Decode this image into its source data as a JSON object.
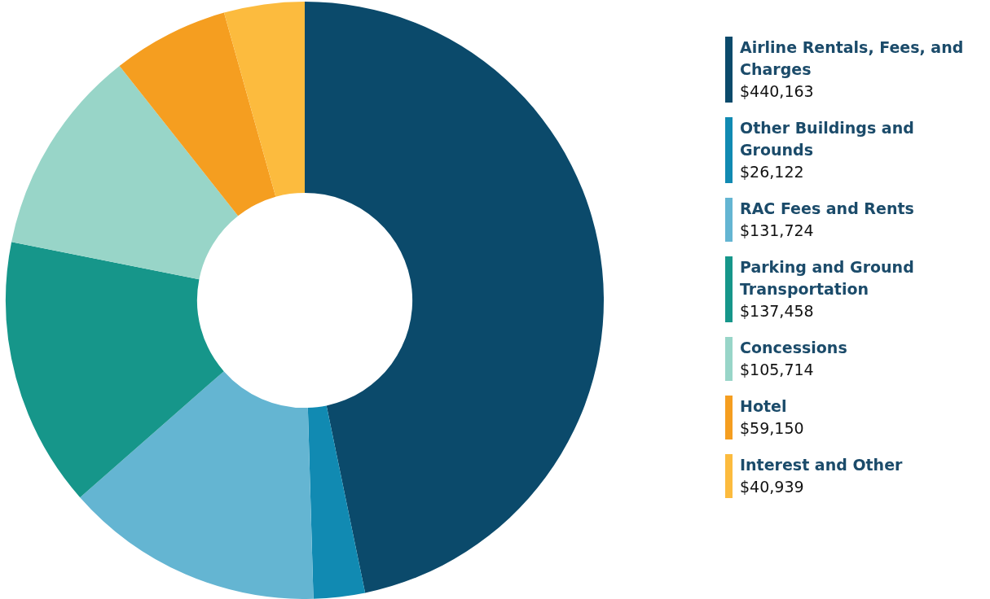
{
  "chart_data": {
    "type": "donut",
    "categories": [
      "Airline Rentals, Fees, and Charges",
      "Other Buildings and Grounds",
      "RAC Fees and Rents",
      "Parking and Ground Transportation",
      "Concessions",
      "Hotel",
      "Interest and Other"
    ],
    "values": [
      440163,
      26122,
      131724,
      137458,
      105714,
      59150,
      40939
    ],
    "value_labels": [
      "$440,163",
      "$26,122",
      "$131,724",
      "$137,458",
      "$105,714",
      "$59,150",
      "$40,939"
    ],
    "colors": [
      "#0b4a6b",
      "#118ab2",
      "#64b5d2",
      "#16968a",
      "#98d5c8",
      "#f59e20",
      "#fcbb3e"
    ],
    "legend": "right"
  }
}
